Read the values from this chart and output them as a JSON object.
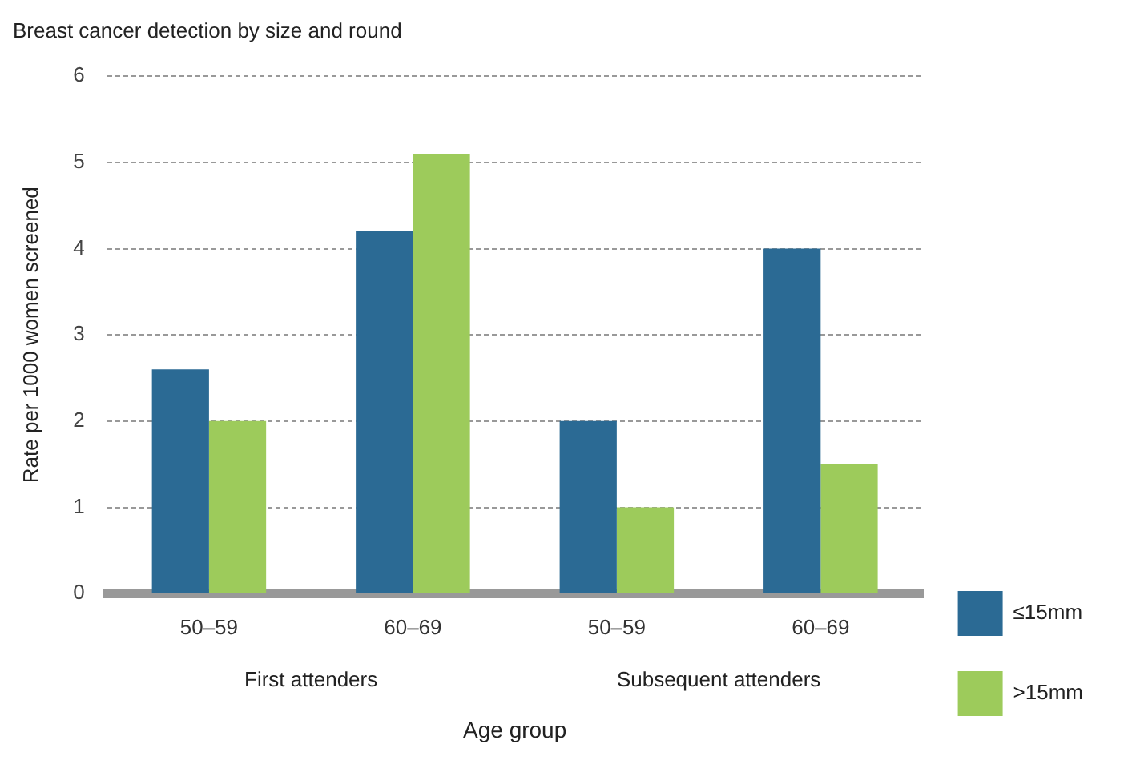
{
  "chart_data": {
    "type": "bar",
    "title": "Breast cancer detection by size and round",
    "xlabel": "Age group",
    "ylabel": "Rate per 1000 women screened",
    "categories": [
      "50–59",
      "60–69",
      "50–59",
      "60–69"
    ],
    "annotations": [
      "First attenders",
      "Subsequent attenders"
    ],
    "series": [
      {
        "name": "≤15mm",
        "color": "#2b6a94",
        "values": [
          2.6,
          4.2,
          2.0,
          4.0
        ]
      },
      {
        "name": ">15mm",
        "color": "#9dcb5b",
        "values": [
          2.0,
          5.1,
          1.0,
          1.5
        ]
      }
    ],
    "ylim": [
      0,
      6
    ],
    "yticks": [
      0,
      1,
      2,
      3,
      4,
      5,
      6
    ],
    "grid": "y",
    "legend": "right"
  }
}
